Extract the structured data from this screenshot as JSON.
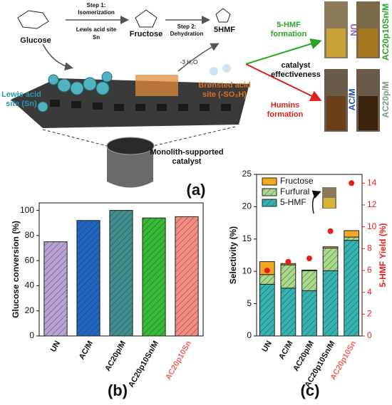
{
  "scheme": {
    "glucose": "Glucose",
    "step1": "Step 1:",
    "isomerization": "Isomerization",
    "lewis_site": "Lewis acid site",
    "sn": "Sn",
    "fructose": "Fructose",
    "step2": "Step 2:",
    "dehydration": "Dehydration",
    "hmf": "5HMF",
    "water": "-3 H₂O",
    "lewis_sn": [
      "Lewis acid",
      "site (Sn)"
    ],
    "bronsted": [
      "Brønsted acid",
      "site (-SO₃H)"
    ],
    "hmf_formation": [
      "5-HMF",
      "formation"
    ],
    "effectiveness": [
      "catalyst",
      "effectiveness"
    ],
    "humins": [
      "Humins",
      "formation"
    ],
    "vials": [
      "UN",
      "AC20p10Sn/M",
      "AC/M",
      "AC20p/M"
    ],
    "monolith": [
      "Monolith-supported",
      "catalyst"
    ],
    "panel": "(a)"
  },
  "chart_data": [
    {
      "type": "bar",
      "panel": "(b)",
      "y_label": "Glucose conversion (%)",
      "categories": [
        "UN",
        "AC/M",
        "AC20p/M",
        "AC20p10Sn/M",
        "AC20p10Sn"
      ],
      "category_colors": [
        "#111111",
        "#111111",
        "#111111",
        "#111111",
        "#f0645a"
      ],
      "values": [
        75,
        92,
        100,
        94,
        95
      ],
      "colors": [
        "#b9a3d6",
        "#2166c0",
        "#3f8f8c",
        "#36bb36",
        "#f58c82"
      ],
      "ylim": [
        0,
        106
      ],
      "yticks": [
        0,
        20,
        40,
        60,
        80,
        100
      ],
      "hatch": true
    },
    {
      "type": "bar",
      "stacked": true,
      "panel": "(c)",
      "y_label": "Selectivity (%)",
      "y2_label": "5-HMF Yield (%)",
      "categories": [
        "UN",
        "AC/M",
        "AC20p/M",
        "AC20p10Sn/M",
        "AC20p10Sn"
      ],
      "category_colors": [
        "#111111",
        "#111111",
        "#111111",
        "#111111",
        "#f0645a"
      ],
      "series": [
        {
          "name": "5-HMF",
          "color": "#35b3b3",
          "values": [
            8,
            7.4,
            7,
            10.1,
            14.8
          ]
        },
        {
          "name": "Furfural",
          "color": "#a9d98a",
          "values": [
            1.5,
            3.6,
            3.1,
            3.5,
            0.5
          ]
        },
        {
          "name": "Fructose",
          "color": "#f5a623",
          "values": [
            2,
            0.2,
            0.1,
            0.2,
            1
          ]
        },
        {
          "type": "scatter",
          "axis": "y2",
          "color": "#e8201c",
          "values": [
            6,
            6.8,
            7.1,
            9.6,
            14
          ]
        }
      ],
      "ylim": [
        0,
        25
      ],
      "yticks": [
        0,
        5,
        10,
        15,
        20,
        25
      ],
      "y2lim": [
        0,
        14.8
      ],
      "y2ticks": [
        0,
        2,
        4,
        6,
        8,
        10,
        12,
        14
      ],
      "legend": "upper left",
      "hatch": true
    }
  ]
}
